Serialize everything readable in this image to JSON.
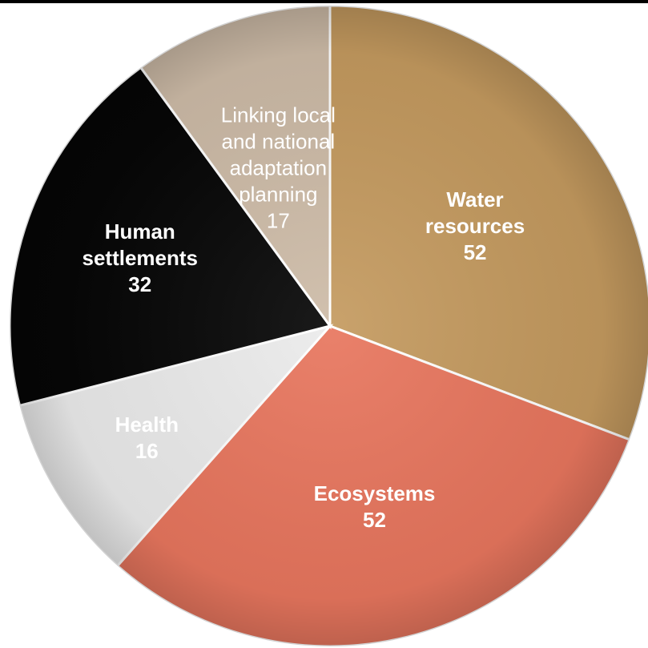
{
  "chart_data": {
    "type": "pie",
    "title": "",
    "start_angle_deg": 0,
    "direction": "clockwise",
    "slices": [
      {
        "lines": [
          "Water",
          "resources"
        ],
        "value": 52,
        "value_label": "52",
        "color": "#c49a5f",
        "label_color": "#ffffff",
        "bold": true
      },
      {
        "lines": [
          "Ecosystems"
        ],
        "value": 52,
        "value_label": "52",
        "color": "#e8765e",
        "label_color": "#ffffff",
        "bold": true
      },
      {
        "lines": [
          "Health"
        ],
        "value": 16,
        "value_label": "16",
        "color": "#ebebeb",
        "label_color": "#ffffff",
        "bold": true
      },
      {
        "lines": [
          "Human",
          "settlements"
        ],
        "value": 32,
        "value_label": "32",
        "color": "#060606",
        "label_color": "#ffffff",
        "bold": true
      },
      {
        "lines": [
          "Linking local",
          "and national",
          "adaptation",
          "planning"
        ],
        "value": 17,
        "value_label": "17",
        "color": "#cdbba7",
        "label_color": "#ffffff",
        "bold": false
      }
    ]
  }
}
